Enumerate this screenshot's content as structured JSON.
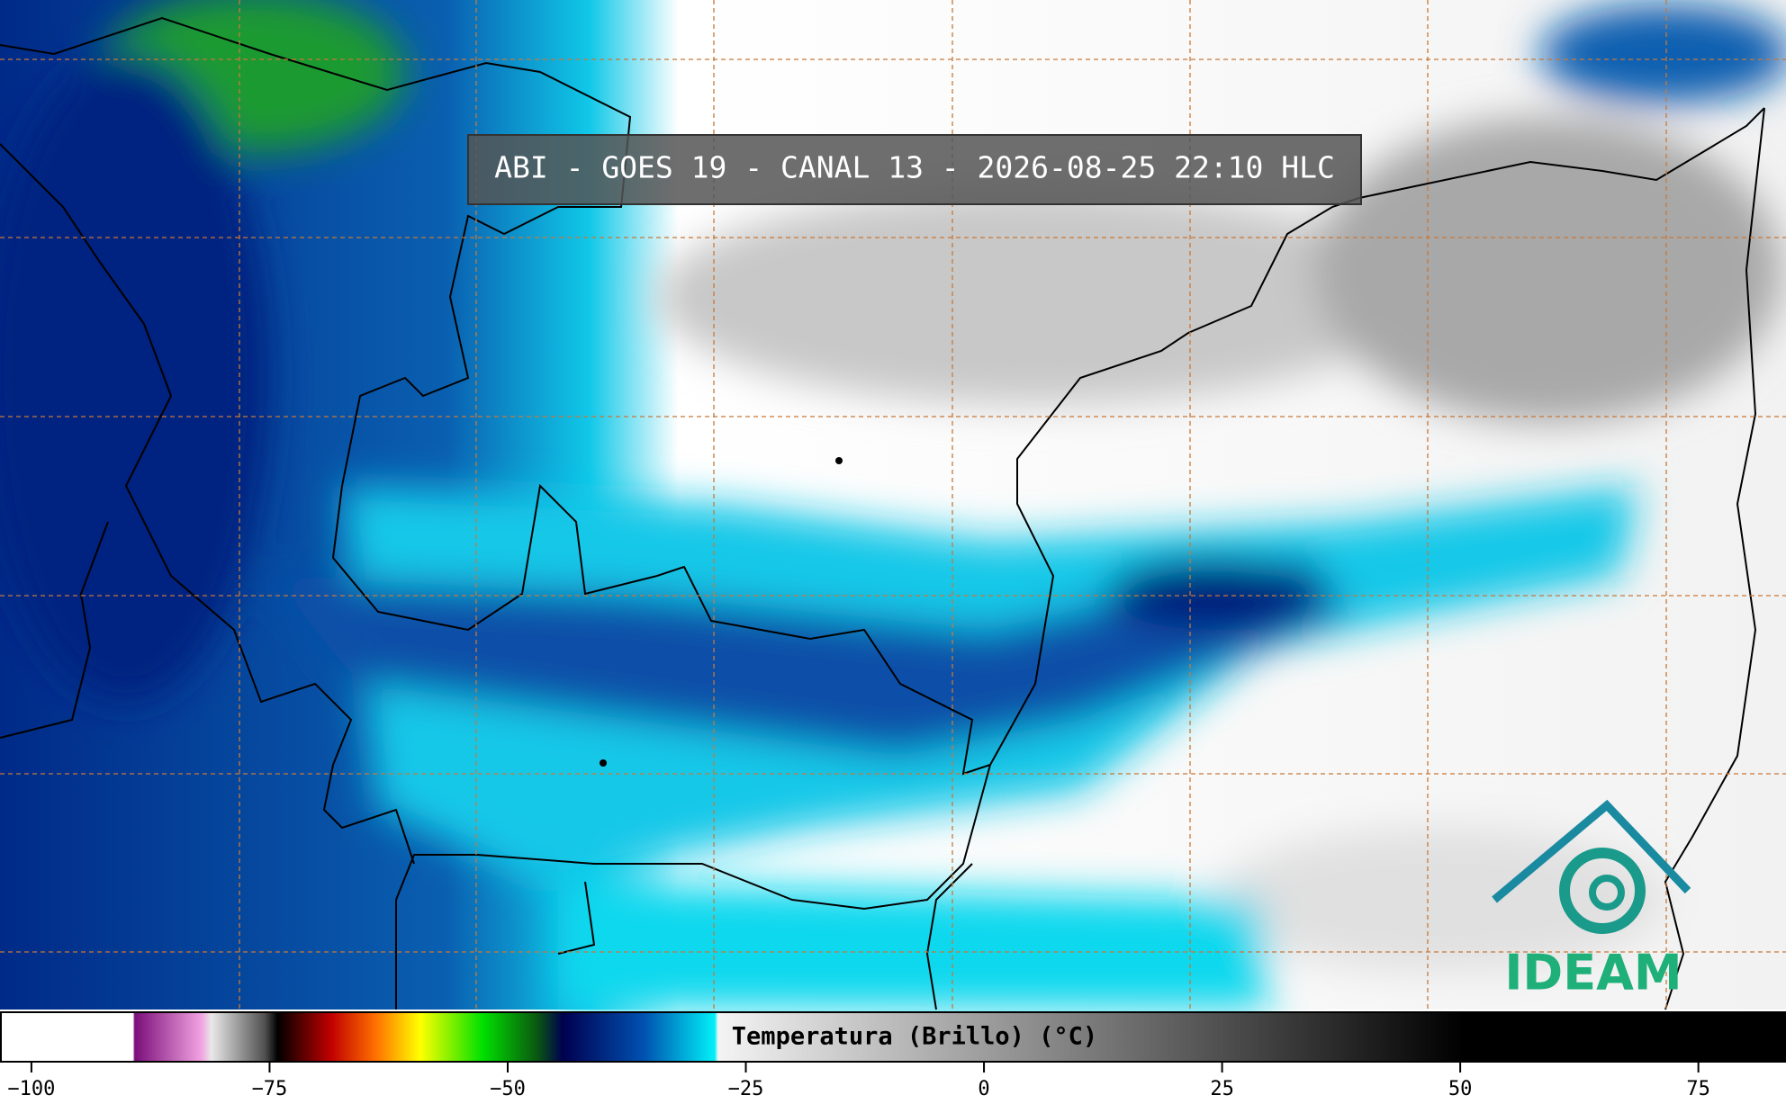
{
  "header": {
    "title": "ABI - GOES 19 - CANAL 13 - 2026-08-25 22:10 HLC"
  },
  "colorbar": {
    "label": "Temperatura (Brillo) (°C)",
    "xlim": [
      -103.3,
      84.2
    ],
    "ticks": [
      {
        "value": -100,
        "label": "−100"
      },
      {
        "value": -75,
        "label": "−75"
      },
      {
        "value": -50,
        "label": "−50"
      },
      {
        "value": -25,
        "label": "−25"
      },
      0,
      25,
      50,
      75
    ]
  },
  "logo": {
    "text": "IDEAM"
  }
}
